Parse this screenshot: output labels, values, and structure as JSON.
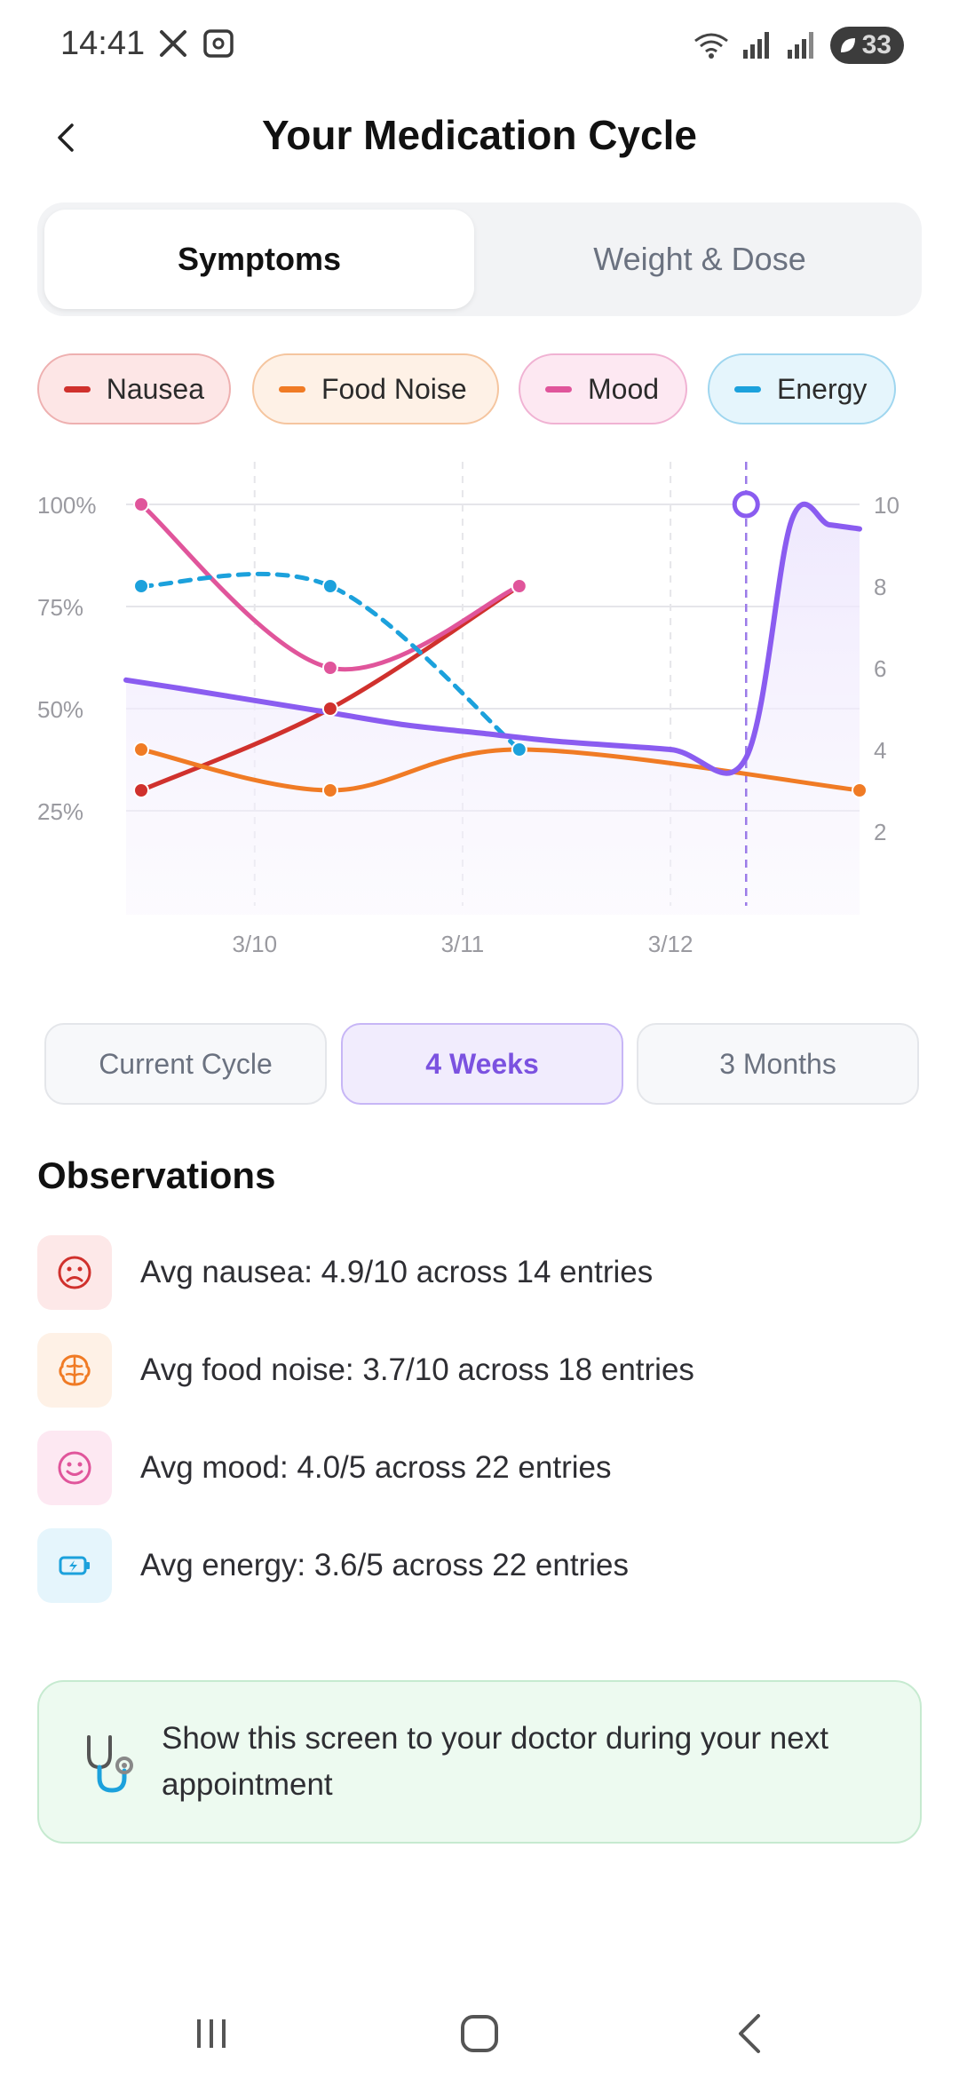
{
  "status_bar": {
    "time": "14:41",
    "signal_label": "R",
    "wifi_badge": "5",
    "battery": "33"
  },
  "header": {
    "title": "Your Medication Cycle"
  },
  "tabs": [
    {
      "label": "Symptoms",
      "active": true
    },
    {
      "label": "Weight & Dose",
      "active": false
    }
  ],
  "legend": [
    {
      "label": "Nausea",
      "color": "#d0312d",
      "bg": "#fde6e6",
      "border": "#eeb0b0"
    },
    {
      "label": "Food Noise",
      "color": "#f07b25",
      "bg": "#fef1e6",
      "border": "#f5c59f"
    },
    {
      "label": "Mood",
      "color": "#e0559b",
      "bg": "#fde8f2",
      "border": "#f0b2d3"
    },
    {
      "label": "Energy",
      "color": "#1ca1dc",
      "bg": "#e5f5fc",
      "border": "#9fd6ef"
    }
  ],
  "chart_data": {
    "type": "line",
    "x_ticks": [
      "3/10",
      "3/11",
      "3/12"
    ],
    "y_left_ticks": [
      "100%",
      "75%",
      "50%",
      "25%"
    ],
    "y_right_ticks": [
      "10",
      "8",
      "6",
      "4",
      "2"
    ],
    "y_left_range": [
      0,
      100
    ],
    "y_right_range": [
      0,
      10
    ],
    "series": [
      {
        "name": "Nausea",
        "color": "#d0312d",
        "style": "solid",
        "points": [
          {
            "x": 3.1,
            "y": 30
          },
          {
            "x": 3.6,
            "y": 50
          },
          {
            "x": 4.1,
            "y": 80
          }
        ]
      },
      {
        "name": "Food Noise",
        "color": "#f07b25",
        "style": "solid",
        "points": [
          {
            "x": 3.1,
            "y": 40
          },
          {
            "x": 3.6,
            "y": 30
          },
          {
            "x": 4.1,
            "y": 40
          },
          {
            "x": 5.0,
            "y": 30
          }
        ]
      },
      {
        "name": "Mood",
        "color": "#e0559b",
        "style": "solid",
        "points": [
          {
            "x": 3.1,
            "y": 100
          },
          {
            "x": 3.6,
            "y": 60
          },
          {
            "x": 4.1,
            "y": 80
          }
        ]
      },
      {
        "name": "Energy",
        "color": "#1ca1dc",
        "style": "dashed",
        "points": [
          {
            "x": 3.1,
            "y": 80
          },
          {
            "x": 3.6,
            "y": 80
          },
          {
            "x": 4.1,
            "y": 40
          }
        ]
      }
    ],
    "weight_line": {
      "color": "#8a5cf0",
      "points": [
        {
          "x": 3.06,
          "y": 5.7
        },
        {
          "x": 3.2,
          "y": 5.5
        },
        {
          "x": 3.4,
          "y": 5.2
        },
        {
          "x": 3.6,
          "y": 4.9
        },
        {
          "x": 3.8,
          "y": 4.6
        },
        {
          "x": 4.0,
          "y": 4.4
        },
        {
          "x": 4.2,
          "y": 4.2
        },
        {
          "x": 4.5,
          "y": 4.0
        },
        {
          "x": 4.7,
          "y": 3.8
        },
        {
          "x": 4.82,
          "y": 9.6
        },
        {
          "x": 4.92,
          "y": 9.5
        },
        {
          "x": 5.0,
          "y": 9.4
        }
      ]
    },
    "marker_x": 4.7,
    "x_range": [
      3.06,
      5.0
    ],
    "grid": true
  },
  "ranges": [
    {
      "label": "Current Cycle",
      "active": false
    },
    {
      "label": "4 Weeks",
      "active": true
    },
    {
      "label": "3 Months",
      "active": false
    }
  ],
  "observations": {
    "title": "Observations",
    "items": [
      {
        "icon": "sad-face-icon",
        "text": "Avg nausea: 4.9/10 across 14 entries",
        "color": "#d0312d",
        "bg": "#fde8e8"
      },
      {
        "icon": "brain-icon",
        "text": "Avg food noise: 3.7/10 across 18 entries",
        "color": "#f07b25",
        "bg": "#fef1e6"
      },
      {
        "icon": "smile-face-icon",
        "text": "Avg mood: 4.0/5 across 22 entries",
        "color": "#e0559b",
        "bg": "#fde8f2"
      },
      {
        "icon": "battery-charging-icon",
        "text": "Avg energy: 3.6/5 across 22 entries",
        "color": "#1ca1dc",
        "bg": "#e5f5fc"
      }
    ]
  },
  "tip": {
    "icon": "stethoscope-icon",
    "text": "Show this screen to your doctor during your next appointment"
  }
}
